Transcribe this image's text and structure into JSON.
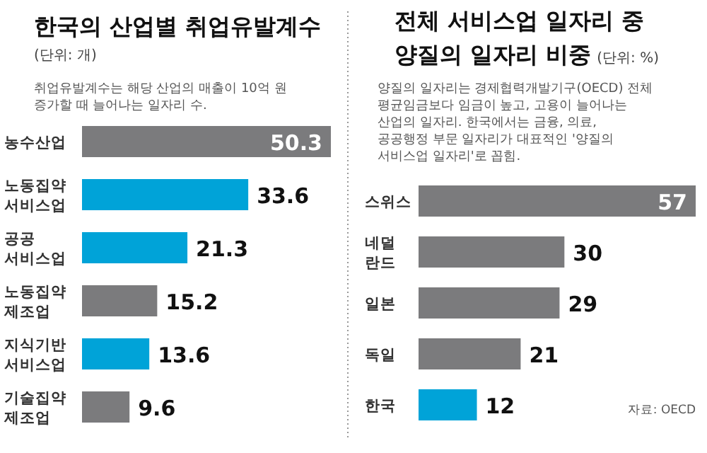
{
  "chart_data": [
    {
      "type": "bar",
      "orientation": "horizontal",
      "title": "한국의 산업별 취업유발계수",
      "subtitle": "(단위: 개)",
      "annotations": [
        "취업유발계수는 해당 산업의 매출이 10억 원\n증가할 때 늘어나는 일자리 수."
      ],
      "categories": [
        "농수산업",
        "노동집약\n서비스업",
        "공공\n서비스업",
        "노동집약\n제조업",
        "지식기반\n서비스업",
        "기술집약\n제조업"
      ],
      "values": [
        50.3,
        33.6,
        21.3,
        15.2,
        13.6,
        9.6
      ],
      "colors": [
        "#7b7b7d",
        "#00a3d8",
        "#00a3d8",
        "#7b7b7d",
        "#00a3d8",
        "#7b7b7d"
      ],
      "data_labels": true
    },
    {
      "type": "bar",
      "orientation": "horizontal",
      "title": "전체 서비스업 일자리 중\n양질의 일자리 비중",
      "subtitle": "(단위: %)",
      "annotations": [
        "양질의 일자리는 경제협력개발기구(OECD) 전체\n평균임금보다 임금이 높고, 고용이 늘어나는\n산업의 일자리. 한국에서는 금융, 의료,\n공공행정 부문 일자리가 대표적인 '양질의\n서비스업 일자리'로 꼽힘.",
        "자료: OECD"
      ],
      "categories": [
        "스위스",
        "네덜\n란드",
        "일본",
        "독일",
        "한국"
      ],
      "values": [
        57,
        30,
        29,
        21,
        12
      ],
      "colors": [
        "#7b7b7d",
        "#7b7b7d",
        "#7b7b7d",
        "#7b7b7d",
        "#00a3d8"
      ],
      "data_labels": true
    }
  ]
}
